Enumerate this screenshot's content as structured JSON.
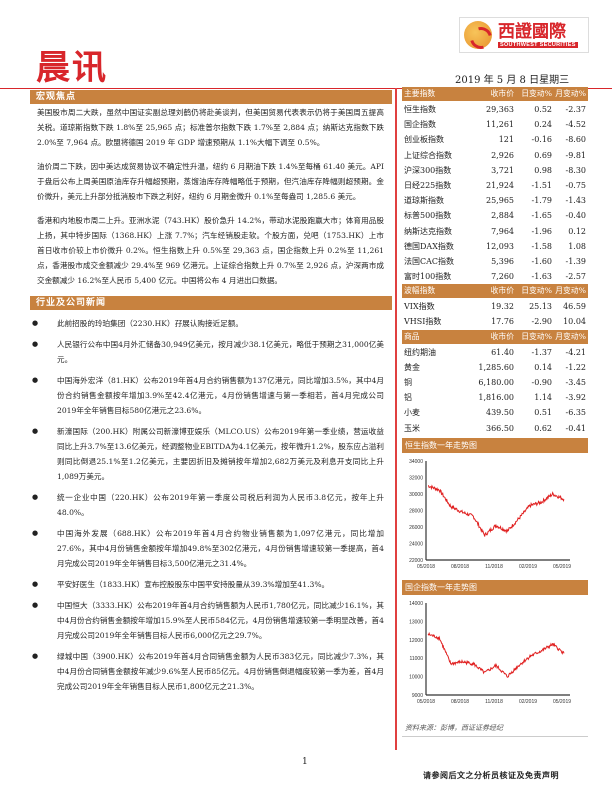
{
  "header": {
    "title": "晨讯",
    "logo_cn": "西證國際",
    "logo_en": "SOUTHWEST SECURITIES",
    "date": "2019 年 5 月 8 日星期三"
  },
  "macro": {
    "heading": "宏观焦点",
    "paragraphs": [
      "美国股市周二大跌，虽然中国证实副总理刘鹤仍将赴美谈判，但美国贸易代表表示仍将于美国周五提高关税。道琼斯指数下跌 1.8%至 25,965 点；标准普尔指数下跌 1.7%至 2,884 点；纳斯达克指数下跌 2.0%至 7,964 点。欧盟将德国 2019 年 GDP 增速预期从 1.1%大幅下调至 0.5%。",
      "油价周二下跌，因中美达成贸易协议不确定性升温，纽约 6 月期油下跌 1.4%至每桶 61.40 美元。API 于盘后公布上周美国原油库存升幅超预期，蒸馏油库存降幅略低于预期，但汽油库存降幅则超预期。金价微升，美元上升部分抵消股市下跌之利好，纽约 6 月期金微升 0.1%至每盎司 1,285.6 美元。",
      "香港和内地股市周二上升。亚洲水泥（743.HK）股价急升 14.2%，带动水泥股跑赢大市；体育用品股上扬，其中特步国际（1368.HK）上涨 7.7%；汽车经销股走软。个股方面，兑吧（1753.HK）上市首日收市价较上市价微升 0.2%。恒生指数上升 0.5%至 29,363 点，国企指数上升 0.2%至 11,261 点，香港股市成交金额减少 29.4%至 969 亿港元。上证综合指数上升 0.7%至 2,926 点，沪深两市成交金额减少 16.2%至人民币 5,400 亿元。中国将公布 4 月进出口数据。"
    ]
  },
  "news": {
    "heading": "行业及公司新闻",
    "items": [
      "此前招股的玲珀集团（2230.HK）孖展认购接近足额。",
      "人民银行公布中国4月外汇储备30,949亿美元，按月减少38.1亿美元，略低于预期之31,000亿美元。",
      "中国海外宏洋（81.HK）公布2019年首4月合约销售额为137亿港元，同比增加3.5%，其中4月份合约销售金额按年增加3.9%至42.4亿港元，4月份销售增速与第一季相若，首4月完成公司2019年全年销售目标580亿港元之23.6%。",
      "新濠国际（200.HK）附属公司新濠博亚娱乐（MLCO.US）公布2019年第一季业绩，营运收益同比上升3.7%至13.6亿美元，经调整物业EBITDA为4.1亿美元，按年微升1.2%，股东应占溢利则同比倒退25.1%至1.2亿美元，主要因折旧及摊销按年增加2,682万美元及利息开支同比上升1,089万美元。",
      "统一企业中国（220.HK）公布2019年第一季度公司税后利润为人民币3.8亿元，按年上升48.0%。",
      "中国海外发展（688.HK）公布2019年首4月合约物业销售额为1,097亿港元，同比增加27.6%，其中4月份销售金额按年增加49.8%至302亿港元，4月份销售增速较第一季提高，首4月完成公司2019年全年销售目标3,500亿港元之31.4%。",
      "平安好医生（1833.HK）宣布控股股东中国平安持股量从39.3%增加至41.3%。",
      "中国恒大（3333.HK）公布2019年首4月合约销售额为人民币1,780亿元，同比减少16.1%，其中4月份合约销售金额按年增加15.9%至人民币584亿元，4月份销售增速较第一季明显改善，首4月完成公司2019年全年销售目标人民币6,000亿元之29.7%。",
      "绿城中国（3900.HK）公布2019年首4月合同销售金额为人民币383亿元，同比减少7.3%，其中4月份合同销售金额按年减少9.6%至人民币85亿元。4月份销售倒退幅度较第一季为差，首4月完成公司2019年全年销售目标人民币1,800亿元之21.3%。"
    ]
  },
  "tables": [
    {
      "headers": [
        "主要指数",
        "收市价",
        "日变动%",
        "月变动%"
      ],
      "rows": [
        [
          "恒生指数",
          "29,363",
          "0.52",
          "-2.37"
        ],
        [
          "国企指数",
          "11,261",
          "0.24",
          "-4.52"
        ],
        [
          "创业板指数",
          "121",
          "-0.16",
          "-8.60"
        ],
        [
          "上证综合指数",
          "2,926",
          "0.69",
          "-9.81"
        ],
        [
          "沪深300指数",
          "3,721",
          "0.98",
          "-8.30"
        ],
        [
          "日经225指数",
          "21,924",
          "-1.51",
          "-0.75"
        ],
        [
          "道琼斯指数",
          "25,965",
          "-1.79",
          "-1.43"
        ],
        [
          "标普500指数",
          "2,884",
          "-1.65",
          "-0.40"
        ],
        [
          "纳斯达克指数",
          "7,964",
          "-1.96",
          "0.12"
        ],
        [
          "德国DAX指数",
          "12,093",
          "-1.58",
          "1.08"
        ],
        [
          "法国CAC指数",
          "5,396",
          "-1.60",
          "-1.39"
        ],
        [
          "富时100指数",
          "7,260",
          "-1.63",
          "-2.57"
        ]
      ]
    },
    {
      "headers": [
        "波幅指数",
        "收市价",
        "日变动%",
        "月变动%"
      ],
      "rows": [
        [
          "VIX指数",
          "19.32",
          "25.13",
          "46.59"
        ],
        [
          "VHSI指数",
          "17.76",
          "-2.90",
          "10.04"
        ]
      ]
    },
    {
      "headers": [
        "商品",
        "收市价",
        "日变动%",
        "月变动%"
      ],
      "rows": [
        [
          "纽约期油",
          "61.40",
          "-1.37",
          "-4.21"
        ],
        [
          "黄金",
          "1,285.60",
          "0.14",
          "-1.22"
        ],
        [
          "铜",
          "6,180.00",
          "-0.90",
          "-3.45"
        ],
        [
          "铝",
          "1,816.00",
          "1.14",
          "-3.92"
        ],
        [
          "小麦",
          "439.50",
          "0.51",
          "-6.35"
        ],
        [
          "玉米",
          "366.50",
          "0.62",
          "-0.41"
        ]
      ]
    }
  ],
  "chart_data": [
    {
      "type": "line",
      "title": "恒生指数一年走势图",
      "ylim": [
        22000,
        34000
      ],
      "yticks": [
        "34000",
        "32000",
        "30000",
        "28000",
        "26000",
        "24000",
        "22000"
      ],
      "xticks": [
        "05/2018",
        "08/2018",
        "11/2018",
        "02/2019",
        "05/2019"
      ],
      "color": "#e02020",
      "x": [
        "05/2018",
        "06/2018",
        "07/2018",
        "08/2018",
        "09/2018",
        "10/2018",
        "11/2018",
        "12/2018",
        "01/2019",
        "02/2019",
        "03/2019",
        "04/2019",
        "05/2019"
      ],
      "values": [
        31000,
        30500,
        28500,
        27800,
        27300,
        25000,
        26200,
        25500,
        27000,
        28600,
        29000,
        30000,
        29363
      ]
    },
    {
      "type": "line",
      "title": "国企指数一年走势图",
      "ylim": [
        9000,
        14000
      ],
      "yticks": [
        "14000",
        "13000",
        "12000",
        "11000",
        "10000",
        "9000"
      ],
      "xticks": [
        "05/2018",
        "08/2018",
        "11/2018",
        "02/2019",
        "05/2019"
      ],
      "color": "#e02020",
      "x": [
        "05/2018",
        "06/2018",
        "07/2018",
        "08/2018",
        "09/2018",
        "10/2018",
        "11/2018",
        "12/2018",
        "01/2019",
        "02/2019",
        "03/2019",
        "04/2019",
        "05/2019"
      ],
      "values": [
        12300,
        12100,
        10700,
        10800,
        10700,
        10200,
        10600,
        10000,
        10600,
        11100,
        11400,
        11750,
        11261
      ]
    }
  ],
  "source": "资料来源：彭博，西证证券经纪",
  "footer": {
    "page": "1",
    "disclaimer": "请参阅后文之分析员核证及免责声明"
  }
}
